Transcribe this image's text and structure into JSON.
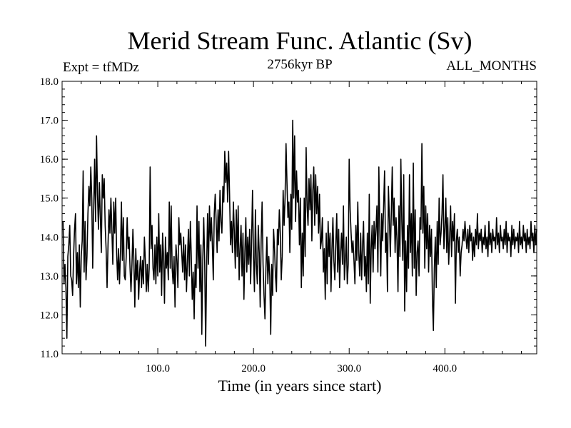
{
  "header": {
    "title": "Merid Stream Func. Atlantic (Sv)",
    "experiment": "Expt = tfMDz",
    "subtitle": "2756kyr BP",
    "season": "ALL_MONTHS"
  },
  "chart_data": {
    "type": "line",
    "title": "Merid Stream Func. Atlantic (Sv)",
    "subtitle": "2756kyr BP",
    "xlabel": "Time (in years since start)",
    "ylabel": "",
    "xlim": [
      0,
      496
    ],
    "ylim": [
      11.0,
      18.0
    ],
    "xticks": [
      100,
      200,
      300,
      400
    ],
    "xtick_labels": [
      "100.0",
      "200.0",
      "300.0",
      "400.0"
    ],
    "yticks": [
      11,
      12,
      13,
      14,
      15,
      16,
      17,
      18
    ],
    "ytick_labels": [
      "11.0",
      "12.0",
      "13.0",
      "14.0",
      "15.0",
      "16.0",
      "17.0",
      "18.0"
    ],
    "grid": false,
    "series": [
      {
        "name": "Merid Stream Func. Atlantic",
        "x_start": 1,
        "x_step": 1,
        "values": [
          14.4,
          12.8,
          13.3,
          12.7,
          11.4,
          13.5,
          13.8,
          14.3,
          13.0,
          12.9,
          12.5,
          13.5,
          14.2,
          14.6,
          12.8,
          13.6,
          12.7,
          13.8,
          12.2,
          13.5,
          13.9,
          15.7,
          13.1,
          14.4,
          12.9,
          13.5,
          14.6,
          15.3,
          14.8,
          15.8,
          15.0,
          13.2,
          14.7,
          16.0,
          14.4,
          16.6,
          15.1,
          14.2,
          15.4,
          14.5,
          13.6,
          15.6,
          15.0,
          15.5,
          14.3,
          13.7,
          12.7,
          13.8,
          14.7,
          14.1,
          15.0,
          14.2,
          13.3,
          14.9,
          14.1,
          15.0,
          13.6,
          12.9,
          13.7,
          12.8,
          13.6,
          14.9,
          13.4,
          14.5,
          13.0,
          12.9,
          13.5,
          14.5,
          13.7,
          14.0,
          13.2,
          12.6,
          13.3,
          14.2,
          13.4,
          12.2,
          13.7,
          12.9,
          13.4,
          12.4,
          13.1,
          13.5,
          12.7,
          13.4,
          12.8,
          14.0,
          13.4,
          12.6,
          13.3,
          12.6,
          13.2,
          15.8,
          13.7,
          14.3,
          13.2,
          12.9,
          13.8,
          12.8,
          14.0,
          13.0,
          14.6,
          13.1,
          13.8,
          12.5,
          14.1,
          13.5,
          12.3,
          14.0,
          13.2,
          13.6,
          12.9,
          14.9,
          13.2,
          14.8,
          13.2,
          12.8,
          13.5,
          12.2,
          13.8,
          13.4,
          12.7,
          14.5,
          13.8,
          14.1,
          13.6,
          13.1,
          14.0,
          12.9,
          13.8,
          12.6,
          13.4,
          14.2,
          13.0,
          14.4,
          13.5,
          12.4,
          13.1,
          11.9,
          13.3,
          12.7,
          14.8,
          13.2,
          14.4,
          12.6,
          13.8,
          11.5,
          13.4,
          14.5,
          13.4,
          11.2,
          13.1,
          14.6,
          13.3,
          14.8,
          13.9,
          14.5,
          13.8,
          12.9,
          14.6,
          15.1,
          14.4,
          13.6,
          14.7,
          13.9,
          15.2,
          14.4,
          14.1,
          15.3,
          14.9,
          16.2,
          15.4,
          15.9,
          14.9,
          16.2,
          15.1,
          13.8,
          14.4,
          13.6,
          14.9,
          14.1,
          13.2,
          14.7,
          13.5,
          14.8,
          12.9,
          13.7,
          14.3,
          13.0,
          14.1,
          12.4,
          13.6,
          14.5,
          13.1,
          14.0,
          13.3,
          14.2,
          12.8,
          13.9,
          15.2,
          13.5,
          12.6,
          14.7,
          13.3,
          12.8,
          14.3,
          13.6,
          12.2,
          13.9,
          14.9,
          13.3,
          12.5,
          11.9,
          13.2,
          14.0,
          12.8,
          13.5,
          13.0,
          11.5,
          13.3,
          12.5,
          14.2,
          13.7,
          13.0,
          12.6,
          14.2,
          13.8,
          14.7,
          14.1,
          12.9,
          13.5,
          15.2,
          14.3,
          15.0,
          16.4,
          15.4,
          14.5,
          14.9,
          13.6,
          15.1,
          14.2,
          17.0,
          15.0,
          16.6,
          14.4,
          15.7,
          14.9,
          15.2,
          13.8,
          15.0,
          12.7,
          14.1,
          13.0,
          15.0,
          13.5,
          16.3,
          14.8,
          14.3,
          15.5,
          14.7,
          15.6,
          13.9,
          15.2,
          15.8,
          14.3,
          15.6,
          14.6,
          15.3,
          14.1,
          15.1,
          13.7,
          13.9,
          14.5,
          13.1,
          13.7,
          12.4,
          14.1,
          12.8,
          14.4,
          13.5,
          14.1,
          12.6,
          13.7,
          14.5,
          13.4,
          12.9,
          13.8,
          14.6,
          13.1,
          14.2,
          12.7,
          13.6,
          14.1,
          13.3,
          14.8,
          12.9,
          13.4,
          14.0,
          12.8,
          13.3,
          16.0,
          14.7,
          14.1,
          13.6,
          13.9,
          13.4,
          12.8,
          14.3,
          13.4,
          14.9,
          13.6,
          13.0,
          14.1,
          12.9,
          13.8,
          14.4,
          13.0,
          13.5,
          12.6,
          14.1,
          12.8,
          15.1,
          12.3,
          13.7,
          14.3,
          13.1,
          14.4,
          13.7,
          14.2,
          14.8,
          13.1,
          15.8,
          14.2,
          13.0,
          14.6,
          13.9,
          14.8,
          15.7,
          13.6,
          14.1,
          12.6,
          15.3,
          14.5,
          13.5,
          14.6,
          15.8,
          14.3,
          15.0,
          13.6,
          14.5,
          13.9,
          12.6,
          14.8,
          13.5,
          16.0,
          14.4,
          13.4,
          15.6,
          12.1,
          13.9,
          12.6,
          14.3,
          13.2,
          15.6,
          13.6,
          14.6,
          13.0,
          15.9,
          13.2,
          14.7,
          12.5,
          13.6,
          13.9,
          13.0,
          14.5,
          14.2,
          16.4,
          14.1,
          15.3,
          13.2,
          14.8,
          13.7,
          14.6,
          13.1,
          14.3,
          13.5,
          14.2,
          12.4,
          11.6,
          13.2,
          14.0,
          12.7,
          14.4,
          13.3,
          15.0,
          13.8,
          14.1,
          14.6,
          15.6,
          13.7,
          14.2,
          15.0,
          13.6,
          14.5,
          13.3,
          14.0,
          14.8,
          13.5,
          14.4,
          13.9,
          14.6,
          12.3,
          13.9,
          14.2,
          13.6,
          14.0,
          13.0,
          13.6,
          13.8,
          14.2,
          13.9,
          14.4,
          14.0,
          13.7,
          14.2,
          13.6,
          14.3,
          13.9,
          14.1,
          13.4,
          14.0,
          13.5,
          14.2,
          13.8,
          14.6,
          13.7,
          14.1,
          13.9,
          14.2,
          13.6,
          14.0,
          13.8,
          14.3,
          13.7,
          14.0,
          13.5,
          14.4,
          13.8,
          14.1,
          13.6,
          14.2,
          13.9,
          14.0,
          13.7,
          14.5,
          13.8,
          14.1,
          13.6,
          14.3,
          13.9,
          14.0,
          13.7,
          14.2,
          13.8,
          14.4,
          13.6,
          14.1,
          13.9,
          14.0,
          13.5,
          14.3,
          13.8,
          14.2,
          13.7,
          14.0,
          13.9,
          14.1,
          13.6,
          14.4,
          13.8,
          14.0,
          13.7,
          14.3,
          13.9,
          14.1,
          13.6,
          14.2,
          13.8,
          14.0,
          13.7,
          14.4,
          13.9,
          14.1,
          13.6,
          14.3,
          13.8,
          14.2
        ]
      }
    ]
  }
}
